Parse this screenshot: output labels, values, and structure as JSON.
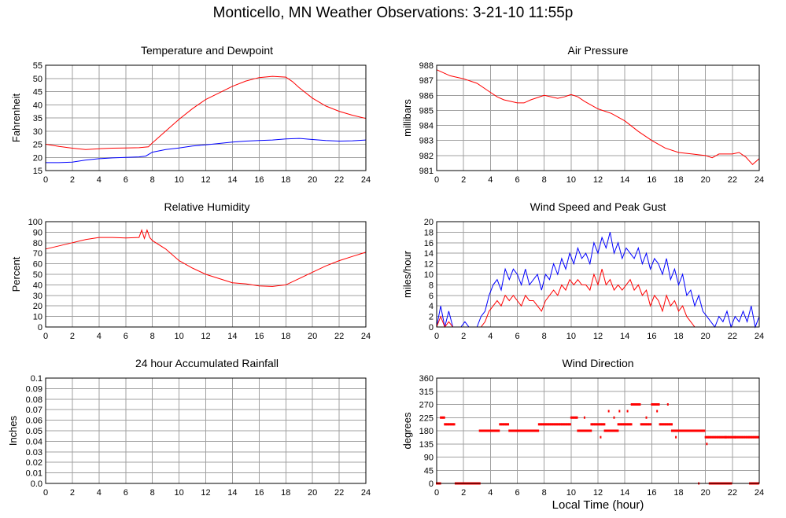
{
  "page": {
    "title": "Monticello, MN Weather Observations: 3-21-10 11:55p",
    "xlabel": "Local Time (hour)"
  },
  "colors": {
    "red": "#ff0000",
    "blue": "#0000ff",
    "grid": "#a0a0a0",
    "axis": "#000000"
  },
  "chart_data": [
    {
      "id": "temp",
      "type": "line",
      "title": "Temperature and Dewpoint",
      "ylabel": "Fahrenheit",
      "xlim": [
        0,
        24
      ],
      "ylim": [
        15,
        55
      ],
      "xticks": [
        0,
        2,
        4,
        6,
        8,
        10,
        12,
        14,
        16,
        18,
        20,
        22,
        24
      ],
      "yticks": [
        15,
        20,
        25,
        30,
        35,
        40,
        45,
        50,
        55
      ],
      "grid": true,
      "series": [
        {
          "color": "#ff0000",
          "x": [
            0,
            1,
            2,
            3,
            4,
            5,
            6,
            7,
            7.7,
            8,
            9,
            10,
            11,
            12,
            13,
            14,
            15,
            16,
            17,
            18,
            18.5,
            19,
            20,
            21,
            22,
            23,
            24
          ],
          "y": [
            25,
            24.2,
            23.5,
            23,
            23.3,
            23.5,
            23.6,
            23.7,
            24,
            25.5,
            30,
            34.5,
            38.5,
            42,
            44.5,
            47,
            49,
            50.3,
            50.8,
            50.5,
            48.8,
            46.5,
            42.5,
            39.5,
            37.5,
            36,
            34.8
          ]
        },
        {
          "color": "#0000ff",
          "x": [
            0,
            1,
            2,
            3,
            4,
            5,
            6,
            7,
            7.5,
            8,
            9,
            10,
            11,
            12,
            13,
            14,
            15,
            16,
            17,
            18,
            19,
            20,
            21,
            22,
            23,
            24
          ],
          "y": [
            18,
            18,
            18.2,
            19,
            19.5,
            19.8,
            20,
            20.2,
            20.5,
            22,
            23,
            23.6,
            24.3,
            24.8,
            25.3,
            25.8,
            26.2,
            26.4,
            26.6,
            27,
            27.2,
            26.8,
            26.4,
            26.2,
            26.3,
            26.6
          ]
        }
      ]
    },
    {
      "id": "pressure",
      "type": "line",
      "title": "Air Pressure",
      "ylabel": "millibars",
      "xlim": [
        0,
        24
      ],
      "ylim": [
        981,
        988
      ],
      "xticks": [
        0,
        2,
        4,
        6,
        8,
        10,
        12,
        14,
        16,
        18,
        20,
        22,
        24
      ],
      "yticks": [
        981,
        982,
        983,
        984,
        985,
        986,
        987,
        988
      ],
      "grid": true,
      "series": [
        {
          "color": "#ff0000",
          "x": [
            0,
            0.5,
            1,
            2,
            3,
            4,
            4.5,
            5,
            6,
            6.5,
            7,
            8,
            9,
            9.5,
            10,
            10.5,
            11,
            12,
            13,
            14,
            15,
            16,
            17,
            18,
            19,
            20,
            20.5,
            21,
            22,
            22.5,
            23,
            23.5,
            24
          ],
          "y": [
            987.7,
            987.5,
            987.3,
            987.1,
            986.8,
            986.2,
            985.9,
            985.7,
            985.5,
            985.5,
            985.7,
            986,
            985.8,
            985.9,
            986.05,
            985.9,
            985.6,
            985.1,
            984.8,
            984.3,
            983.6,
            983,
            982.5,
            982.2,
            982.1,
            982,
            981.85,
            982.1,
            982.1,
            982.2,
            981.9,
            981.4,
            981.8
          ]
        }
      ]
    },
    {
      "id": "humidity",
      "type": "line",
      "title": "Relative Humidity",
      "ylabel": "Percent",
      "xlim": [
        0,
        24
      ],
      "ylim": [
        0,
        100
      ],
      "xticks": [
        0,
        2,
        4,
        6,
        8,
        10,
        12,
        14,
        16,
        18,
        20,
        22,
        24
      ],
      "yticks": [
        0,
        10,
        20,
        30,
        40,
        50,
        60,
        70,
        80,
        90,
        100
      ],
      "grid": true,
      "series": [
        {
          "color": "#ff0000",
          "x": [
            0,
            1,
            2,
            3,
            4,
            5,
            6,
            7,
            7.2,
            7.4,
            7.6,
            7.8,
            8,
            9,
            10,
            11,
            12,
            13,
            14,
            15,
            16,
            17,
            18,
            19,
            20,
            21,
            22,
            23,
            24
          ],
          "y": [
            74,
            77,
            80,
            83,
            85,
            85,
            84.5,
            85,
            92,
            84,
            92,
            85,
            82,
            74,
            63,
            56,
            50,
            46,
            42,
            41,
            39,
            38.5,
            40,
            46,
            52,
            58,
            63,
            67,
            71
          ]
        }
      ]
    },
    {
      "id": "wind",
      "type": "line",
      "title": "Wind Speed and Peak Gust",
      "ylabel": "miles/hour",
      "xlim": [
        0,
        24
      ],
      "ylim": [
        0,
        20
      ],
      "xticks": [
        0,
        2,
        4,
        6,
        8,
        10,
        12,
        14,
        16,
        18,
        20,
        22,
        24
      ],
      "yticks": [
        0,
        2,
        4,
        6,
        8,
        10,
        12,
        14,
        16,
        18,
        20
      ],
      "grid": true,
      "series": [
        {
          "color": "#0000ff",
          "x": [
            0,
            0.3,
            0.6,
            0.9,
            1.2,
            1.5,
            1.8,
            2.1,
            2.4,
            2.7,
            3,
            3.3,
            3.6,
            3.9,
            4.2,
            4.5,
            4.8,
            5.1,
            5.4,
            5.7,
            6,
            6.3,
            6.6,
            6.9,
            7.2,
            7.5,
            7.8,
            8.1,
            8.4,
            8.7,
            9,
            9.3,
            9.6,
            9.9,
            10.2,
            10.5,
            10.8,
            11.1,
            11.4,
            11.7,
            12,
            12.3,
            12.6,
            12.9,
            13.2,
            13.5,
            13.8,
            14.1,
            14.4,
            14.7,
            15,
            15.3,
            15.6,
            15.9,
            16.2,
            16.5,
            16.8,
            17.1,
            17.4,
            17.7,
            18,
            18.3,
            18.6,
            18.9,
            19.2,
            19.5,
            19.8,
            20.1,
            20.4,
            20.7,
            21,
            21.3,
            21.6,
            21.9,
            22.2,
            22.5,
            22.8,
            23.1,
            23.4,
            23.7,
            24
          ],
          "y": [
            0,
            4,
            0,
            3,
            0,
            0,
            0,
            1,
            0,
            0,
            0,
            2,
            3,
            6,
            8,
            9,
            7,
            11,
            9,
            11,
            10,
            8,
            11,
            8,
            9,
            10,
            7,
            10,
            9,
            12,
            10,
            13,
            11,
            14,
            12,
            15,
            13,
            14,
            12,
            16,
            14,
            17,
            15,
            18,
            14,
            16,
            13,
            15,
            14,
            13,
            15,
            12,
            14,
            11,
            13,
            12,
            10,
            13,
            9,
            11,
            8,
            10,
            6,
            7,
            4,
            6,
            3,
            2,
            1,
            0,
            2,
            1,
            3,
            0,
            2,
            1,
            3,
            1,
            4,
            0,
            2
          ]
        },
        {
          "color": "#ff0000",
          "x": [
            0,
            0.3,
            0.6,
            0.9,
            1.2,
            1.5,
            1.8,
            2.1,
            2.4,
            2.7,
            3,
            3.3,
            3.6,
            3.9,
            4.2,
            4.5,
            4.8,
            5.1,
            5.4,
            5.7,
            6,
            6.3,
            6.6,
            6.9,
            7.2,
            7.5,
            7.8,
            8.1,
            8.4,
            8.7,
            9,
            9.3,
            9.6,
            9.9,
            10.2,
            10.5,
            10.8,
            11.1,
            11.4,
            11.7,
            12,
            12.3,
            12.6,
            12.9,
            13.2,
            13.5,
            13.8,
            14.1,
            14.4,
            14.7,
            15,
            15.3,
            15.6,
            15.9,
            16.2,
            16.5,
            16.8,
            17.1,
            17.4,
            17.7,
            18,
            18.3,
            18.6,
            18.9,
            19.2,
            19.5,
            19.8,
            20.1,
            20.4,
            20.7,
            21,
            21.3,
            21.6,
            21.9,
            22.2,
            22.5,
            22.8,
            23.1,
            23.4,
            23.7,
            24
          ],
          "y": [
            0,
            2,
            0,
            1,
            0,
            0,
            0,
            0,
            0,
            0,
            0,
            0,
            1,
            3,
            4,
            5,
            4,
            6,
            5,
            6,
            5,
            4,
            6,
            5,
            5,
            4,
            3,
            5,
            6,
            7,
            6,
            8,
            7,
            9,
            8,
            9,
            8,
            8,
            7,
            10,
            8,
            11,
            8,
            9,
            7,
            8,
            7,
            8,
            9,
            7,
            8,
            6,
            7,
            4,
            6,
            5,
            3,
            6,
            4,
            5,
            3,
            4,
            2,
            1,
            0,
            0,
            0,
            0,
            0,
            0,
            0,
            0,
            0,
            0,
            0,
            0,
            0,
            0,
            0,
            0,
            0
          ]
        }
      ]
    },
    {
      "id": "rain",
      "type": "line",
      "title": "24 hour Accumulated Rainfall",
      "ylabel": "Inches",
      "xlim": [
        0,
        24
      ],
      "ylim": [
        0,
        0.1
      ],
      "xticks": [
        0,
        2,
        4,
        6,
        8,
        10,
        12,
        14,
        16,
        18,
        20,
        22,
        24
      ],
      "yticks": [
        "0.0",
        "0.01",
        "0.02",
        "0.03",
        "0.04",
        "0.05",
        "0.06",
        "0.07",
        "0.08",
        "0.09",
        "0.1"
      ],
      "grid": true,
      "series": [
        {
          "color": "#ff0000",
          "x": [
            0,
            24
          ],
          "y": [
            0,
            0
          ]
        }
      ]
    },
    {
      "id": "direction",
      "type": "scatter",
      "title": "Wind Direction",
      "ylabel": "degrees",
      "xlabel": "Local Time (hour)",
      "xlim": [
        0,
        24
      ],
      "ylim": [
        0,
        360
      ],
      "xticks": [
        0,
        2,
        4,
        6,
        8,
        10,
        12,
        14,
        16,
        18,
        20,
        22,
        24
      ],
      "yticks": [
        0,
        45,
        90,
        135,
        180,
        225,
        270,
        315,
        360
      ],
      "grid": true,
      "series": [
        {
          "color": "#ff0000",
          "segments": [
            {
              "x0": 0.0,
              "x1": 0.3,
              "y": 0
            },
            {
              "x0": 0.3,
              "x1": 0.6,
              "y": 225
            },
            {
              "x0": 0.6,
              "x1": 1.4,
              "y": 202
            },
            {
              "x0": 1.4,
              "x1": 3.2,
              "y": 0
            },
            {
              "x0": 3.2,
              "x1": 4.7,
              "y": 180
            },
            {
              "x0": 4.7,
              "x1": 5.4,
              "y": 202
            },
            {
              "x0": 5.4,
              "x1": 7.6,
              "y": 180
            },
            {
              "x0": 7.6,
              "x1": 10.0,
              "y": 202
            },
            {
              "x0": 10.0,
              "x1": 10.5,
              "y": 225
            },
            {
              "x0": 10.5,
              "x1": 11.5,
              "y": 180
            },
            {
              "x0": 11.5,
              "x1": 12.5,
              "y": 202
            },
            {
              "x0": 12.5,
              "x1": 13.5,
              "y": 180
            },
            {
              "x0": 13.5,
              "x1": 14.5,
              "y": 202
            },
            {
              "x0": 14.5,
              "x1": 15.2,
              "y": 270
            },
            {
              "x0": 15.2,
              "x1": 16.0,
              "y": 202
            },
            {
              "x0": 16.0,
              "x1": 16.6,
              "y": 270
            },
            {
              "x0": 16.6,
              "x1": 17.5,
              "y": 202
            },
            {
              "x0": 17.5,
              "x1": 20.0,
              "y": 180
            },
            {
              "x0": 20.0,
              "x1": 24.0,
              "y": 158
            },
            {
              "x0": 20.3,
              "x1": 22.0,
              "y": 0
            },
            {
              "x0": 23.3,
              "x1": 24.0,
              "y": 0
            }
          ],
          "extra_points": [
            [
              3.2,
              0
            ],
            [
              11.0,
              225
            ],
            [
              12.2,
              158
            ],
            [
              12.8,
              247
            ],
            [
              13.2,
              225
            ],
            [
              13.6,
              247
            ],
            [
              14.2,
              247
            ],
            [
              15.6,
              225
            ],
            [
              16.4,
              247
            ],
            [
              17.2,
              270
            ],
            [
              17.8,
              158
            ],
            [
              19.5,
              0
            ],
            [
              20.1,
              135
            ],
            [
              21.5,
              158
            ],
            [
              22.2,
              158
            ]
          ]
        }
      ]
    }
  ]
}
